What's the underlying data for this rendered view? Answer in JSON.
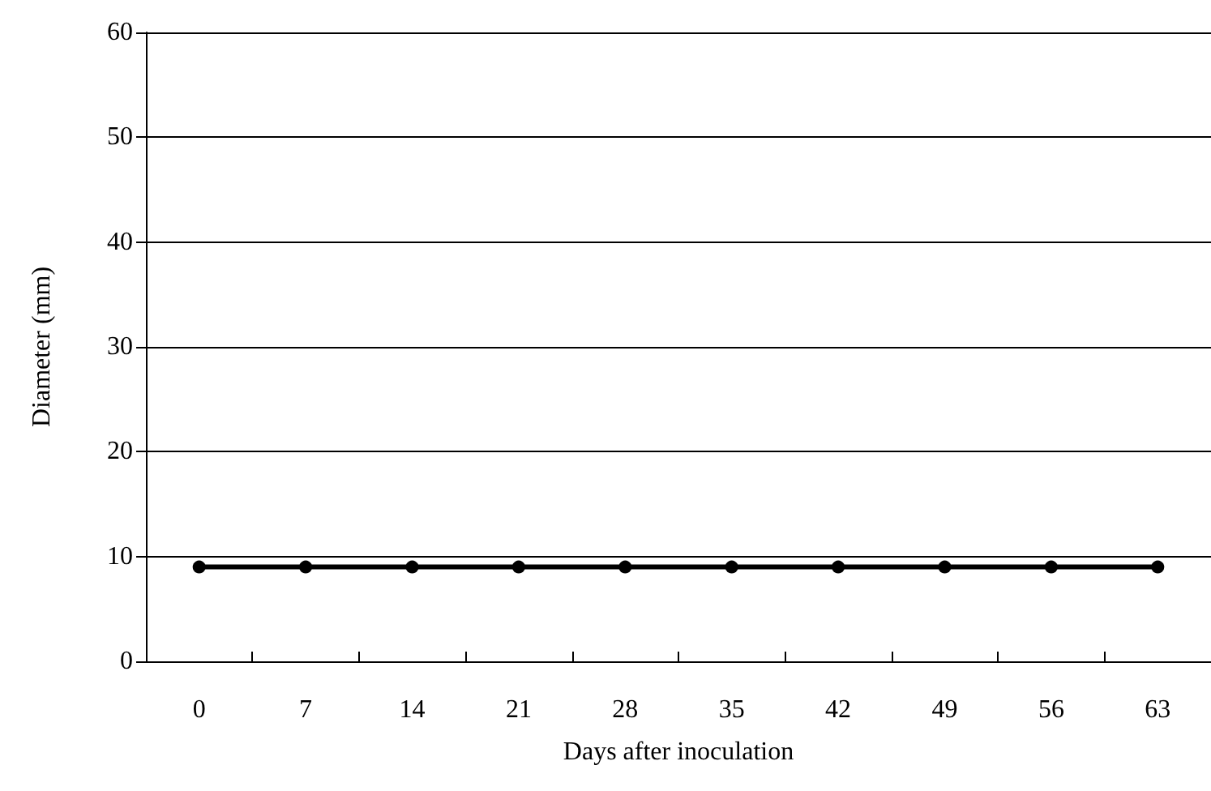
{
  "chart_data": {
    "type": "line",
    "xlabel": "Days after inoculation",
    "ylabel": "Diameter (mm)",
    "categories": [
      "0",
      "7",
      "14",
      "21",
      "28",
      "35",
      "42",
      "49",
      "56",
      "63"
    ],
    "series": [
      {
        "color": "#000000",
        "values": [
          9,
          9,
          9,
          9,
          9,
          9,
          9,
          9,
          9,
          9
        ]
      }
    ],
    "ylim": [
      0,
      60
    ],
    "yticks": [
      0,
      10,
      20,
      30,
      40,
      50,
      60
    ],
    "grid": "y",
    "marker": "circle",
    "line_style": "solid"
  }
}
